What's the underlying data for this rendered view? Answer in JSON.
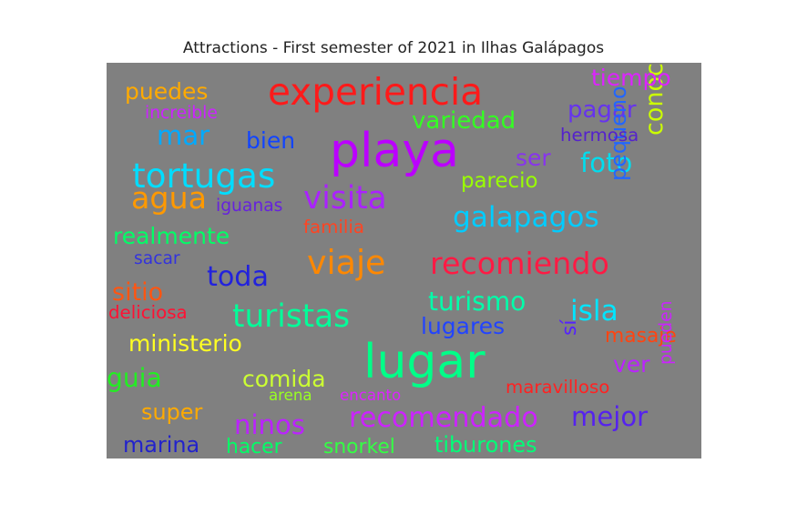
{
  "chart_data": {
    "type": "wordcloud",
    "title": "Attractions - First semester of 2021 in Ilhas Galápagos",
    "background_color": "#808080",
    "words": [
      {
        "text": "playa",
        "weight": 1.0,
        "color": "#bb00ff",
        "orientation": "horizontal"
      },
      {
        "text": "lugar",
        "weight": 1.0,
        "color": "#00ff88",
        "orientation": "horizontal"
      },
      {
        "text": "experiencia",
        "weight": 0.78,
        "color": "#ff1a1a",
        "orientation": "horizontal"
      },
      {
        "text": "tortugas",
        "weight": 0.72,
        "color": "#00ddff",
        "orientation": "horizontal"
      },
      {
        "text": "viaje",
        "weight": 0.7,
        "color": "#ff8800",
        "orientation": "horizontal"
      },
      {
        "text": "visita",
        "weight": 0.66,
        "color": "#aa22ff",
        "orientation": "horizontal"
      },
      {
        "text": "turistas",
        "weight": 0.66,
        "color": "#00ff99",
        "orientation": "horizontal"
      },
      {
        "text": "agua",
        "weight": 0.64,
        "color": "#ff9900",
        "orientation": "horizontal"
      },
      {
        "text": "recomiendo",
        "weight": 0.64,
        "color": "#ff1a44",
        "orientation": "horizontal"
      },
      {
        "text": "isla",
        "weight": 0.6,
        "color": "#00e5ff",
        "orientation": "horizontal"
      },
      {
        "text": "galapagos",
        "weight": 0.6,
        "color": "#00ccff",
        "orientation": "horizontal"
      },
      {
        "text": "toda",
        "weight": 0.58,
        "color": "#2222dd",
        "orientation": "horizontal"
      },
      {
        "text": "recomendado",
        "weight": 0.58,
        "color": "#cc22ff",
        "orientation": "horizontal"
      },
      {
        "text": "mar",
        "weight": 0.56,
        "color": "#00aaff",
        "orientation": "horizontal"
      },
      {
        "text": "foto",
        "weight": 0.56,
        "color": "#00ddee",
        "orientation": "horizontal"
      },
      {
        "text": "ninos",
        "weight": 0.56,
        "color": "#bb22ff",
        "orientation": "horizontal"
      },
      {
        "text": "mejor",
        "weight": 0.56,
        "color": "#5522ee",
        "orientation": "horizontal"
      },
      {
        "text": "turismo",
        "weight": 0.54,
        "color": "#00ffaa",
        "orientation": "horizontal"
      },
      {
        "text": "guia",
        "weight": 0.54,
        "color": "#22ee22",
        "orientation": "horizontal"
      },
      {
        "text": "conocer",
        "weight": 0.52,
        "color": "#ccff00",
        "orientation": "vertical"
      },
      {
        "text": "sitio",
        "weight": 0.52,
        "color": "#ff5511",
        "orientation": "horizontal"
      },
      {
        "text": "variedad",
        "weight": 0.5,
        "color": "#33ff22",
        "orientation": "horizontal"
      },
      {
        "text": "pagar",
        "weight": 0.5,
        "color": "#6633ee",
        "orientation": "horizontal"
      },
      {
        "text": "bien",
        "weight": 0.48,
        "color": "#1144ff",
        "orientation": "horizontal"
      },
      {
        "text": "ser",
        "weight": 0.48,
        "color": "#8833ee",
        "orientation": "horizontal"
      },
      {
        "text": "puedes",
        "weight": 0.48,
        "color": "#ffaa00",
        "orientation": "horizontal"
      },
      {
        "text": "tiempo",
        "weight": 0.48,
        "color": "#dd22ff",
        "orientation": "horizontal"
      },
      {
        "text": "realmente",
        "weight": 0.48,
        "color": "#00ff66",
        "orientation": "horizontal"
      },
      {
        "text": "ministerio",
        "weight": 0.48,
        "color": "#ffff22",
        "orientation": "horizontal"
      },
      {
        "text": "comida",
        "weight": 0.48,
        "color": "#ccff33",
        "orientation": "horizontal"
      },
      {
        "text": "lugares",
        "weight": 0.48,
        "color": "#2244ff",
        "orientation": "horizontal"
      },
      {
        "text": "ver",
        "weight": 0.48,
        "color": "#bb22ff",
        "orientation": "horizontal"
      },
      {
        "text": "pequeno",
        "weight": 0.46,
        "color": "#2266ff",
        "orientation": "vertical"
      },
      {
        "text": "super",
        "weight": 0.46,
        "color": "#ffaa00",
        "orientation": "horizontal"
      },
      {
        "text": "marina",
        "weight": 0.46,
        "color": "#2222cc",
        "orientation": "horizontal"
      },
      {
        "text": "tiburones",
        "weight": 0.46,
        "color": "#00ff77",
        "orientation": "horizontal"
      },
      {
        "text": "parecio",
        "weight": 0.44,
        "color": "#99ff00",
        "orientation": "horizontal"
      },
      {
        "text": "hacer",
        "weight": 0.42,
        "color": "#00ff66",
        "orientation": "horizontal"
      },
      {
        "text": "snorkel",
        "weight": 0.42,
        "color": "#33ff44",
        "orientation": "horizontal"
      },
      {
        "text": "masaje",
        "weight": 0.42,
        "color": "#ff4411",
        "orientation": "horizontal"
      },
      {
        "text": "sí",
        "weight": 0.42,
        "color": "#5522ff",
        "orientation": "vertical"
      },
      {
        "text": "maravilloso",
        "weight": 0.38,
        "color": "#ff2222",
        "orientation": "horizontal"
      },
      {
        "text": "hermosa",
        "weight": 0.38,
        "color": "#5522cc",
        "orientation": "horizontal"
      },
      {
        "text": "familia",
        "weight": 0.38,
        "color": "#ff4422",
        "orientation": "horizontal"
      },
      {
        "text": "deliciosa",
        "weight": 0.38,
        "color": "#ff1133",
        "orientation": "horizontal"
      },
      {
        "text": "sacar",
        "weight": 0.36,
        "color": "#3333dd",
        "orientation": "horizontal"
      },
      {
        "text": "increible",
        "weight": 0.36,
        "color": "#cc22ff",
        "orientation": "horizontal"
      },
      {
        "text": "iguanas",
        "weight": 0.36,
        "color": "#6622dd",
        "orientation": "horizontal"
      },
      {
        "text": "pueden",
        "weight": 0.36,
        "color": "#cc22ff",
        "orientation": "vertical"
      },
      {
        "text": "arena",
        "weight": 0.32,
        "color": "#99ff22",
        "orientation": "horizontal"
      },
      {
        "text": "encanto",
        "weight": 0.32,
        "color": "#dd22ff",
        "orientation": "horizontal"
      }
    ]
  }
}
